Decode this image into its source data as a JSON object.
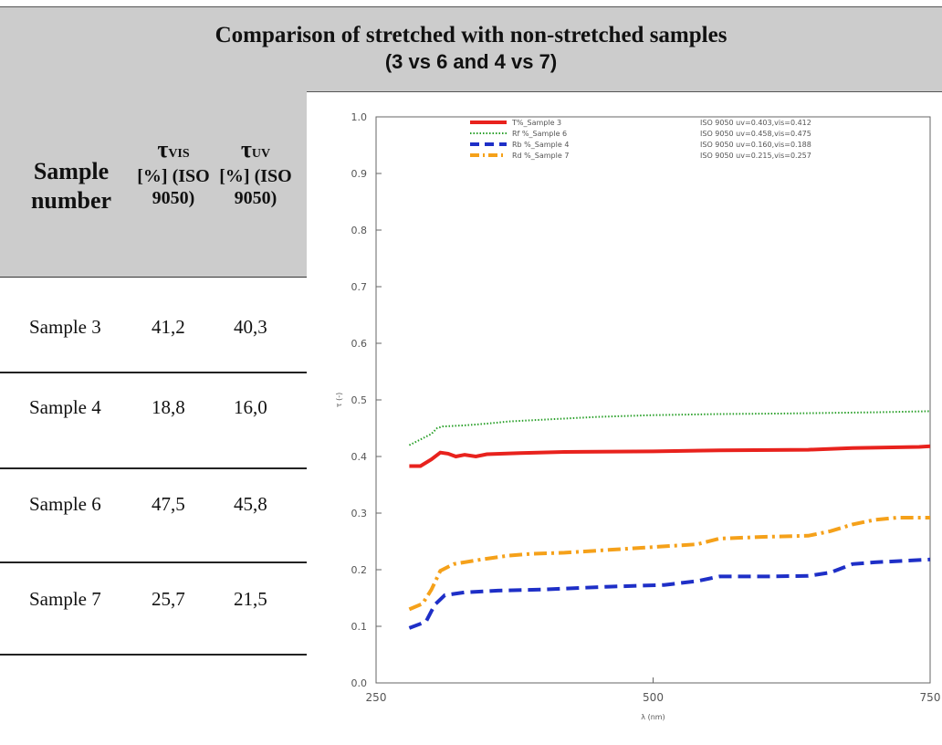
{
  "header": {
    "title_line1": "Comparison of stretched with non-stretched samples",
    "title_line2": "(3 vs 6 and 4 vs 7)"
  },
  "table": {
    "columns": {
      "sample": "Sample number",
      "vis": {
        "symbol": "τ",
        "sub": "VIS",
        "rest": "[%] (ISO 9050)"
      },
      "uv": {
        "symbol": "τ",
        "sub": "UV",
        "rest": "[%] (ISO 9050)"
      }
    },
    "rows": [
      {
        "sample": "Sample 3",
        "vis": "41,2",
        "uv": "40,3"
      },
      {
        "sample": "Sample 4",
        "vis": "18,8",
        "uv": "16,0"
      },
      {
        "sample": "Sample 6",
        "vis": "47,5",
        "uv": "45,8"
      },
      {
        "sample": "Sample 7",
        "vis": "25,7",
        "uv": "21,5"
      }
    ]
  },
  "chart_data": {
    "type": "line",
    "xlabel": "λ (nm)",
    "ylabel": "τ (-)",
    "xlim": [
      250,
      750
    ],
    "ylim": [
      0.0,
      1.0
    ],
    "xticks": [
      "250",
      "500",
      "750"
    ],
    "yticks": [
      "0.0",
      "0.1",
      "0.2",
      "0.3",
      "0.4",
      "0.5",
      "0.6",
      "0.7",
      "0.8",
      "0.9",
      "1.0"
    ],
    "legend_position": "top",
    "series": [
      {
        "name": "T%_Sample 3",
        "note": "ISO 9050 uv=0.403,vis=0.412",
        "color": "#e8221d",
        "style": "solid",
        "x": [
          280,
          290,
          300,
          308,
          315,
          322,
          330,
          340,
          350,
          380,
          420,
          500,
          560,
          640,
          680,
          740,
          750
        ],
        "y": [
          0.383,
          0.383,
          0.395,
          0.407,
          0.405,
          0.4,
          0.403,
          0.4,
          0.404,
          0.406,
          0.408,
          0.409,
          0.411,
          0.412,
          0.415,
          0.417,
          0.418
        ]
      },
      {
        "name": "Rf %_Sample 6",
        "note": "ISO 9050 uv=0.458,vis=0.475",
        "color": "#2aa02a",
        "style": "dotted",
        "x": [
          280,
          290,
          300,
          305,
          310,
          330,
          350,
          370,
          400,
          450,
          500,
          560,
          620,
          700,
          750
        ],
        "y": [
          0.42,
          0.43,
          0.44,
          0.45,
          0.453,
          0.455,
          0.458,
          0.462,
          0.465,
          0.47,
          0.473,
          0.475,
          0.476,
          0.478,
          0.48
        ]
      },
      {
        "name": "Rb %_Sample 4",
        "note": "ISO 9050 uv=0.160,vis=0.188",
        "color": "#1e2fc7",
        "style": "dashed",
        "x": [
          280,
          295,
          303,
          312,
          330,
          360,
          400,
          460,
          510,
          540,
          560,
          600,
          640,
          660,
          680,
          700,
          750
        ],
        "y": [
          0.097,
          0.108,
          0.138,
          0.155,
          0.16,
          0.163,
          0.165,
          0.17,
          0.173,
          0.18,
          0.188,
          0.188,
          0.189,
          0.195,
          0.21,
          0.213,
          0.218
        ]
      },
      {
        "name": "Rd %_Sample 7",
        "note": "ISO 9050 uv=0.215,vis=0.257",
        "color": "#f5a11a",
        "style": "dashdot",
        "x": [
          280,
          292,
          300,
          308,
          320,
          345,
          370,
          390,
          420,
          460,
          500,
          540,
          560,
          600,
          640,
          660,
          680,
          700,
          720,
          750
        ],
        "y": [
          0.13,
          0.14,
          0.165,
          0.198,
          0.21,
          0.218,
          0.225,
          0.228,
          0.23,
          0.235,
          0.24,
          0.245,
          0.255,
          0.258,
          0.26,
          0.268,
          0.28,
          0.288,
          0.292,
          0.292
        ]
      }
    ]
  }
}
